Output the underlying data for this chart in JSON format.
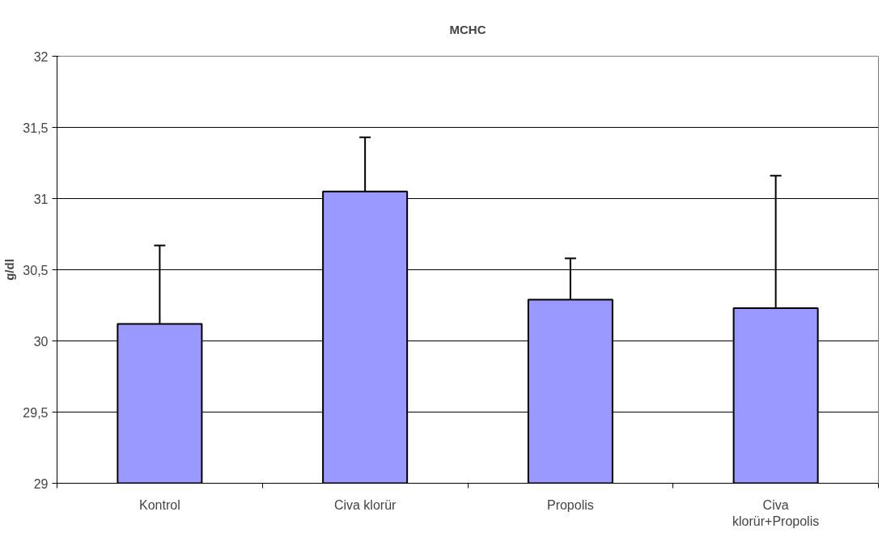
{
  "chart_data": {
    "type": "bar",
    "title": "MCHC",
    "ylabel": "g/dl",
    "categories": [
      "Kontrol",
      "Civa klorür",
      "Propolis",
      "Civa klorür+Propolis"
    ],
    "values": [
      30.12,
      31.05,
      30.29,
      30.23
    ],
    "errors": [
      [
        30.12,
        30.67
      ],
      [
        31.05,
        31.43
      ],
      [
        30.29,
        30.58
      ],
      [
        30.23,
        31.16
      ]
    ],
    "color": "#9999ff",
    "ylim": [
      29,
      32
    ],
    "yticks": [
      29,
      {
        "value": 29.5,
        "label": "29,5"
      },
      30,
      {
        "value": 30.5,
        "label": "30,5"
      },
      31,
      {
        "value": 31.5,
        "label": "31,5"
      },
      32
    ],
    "grid": "y"
  }
}
